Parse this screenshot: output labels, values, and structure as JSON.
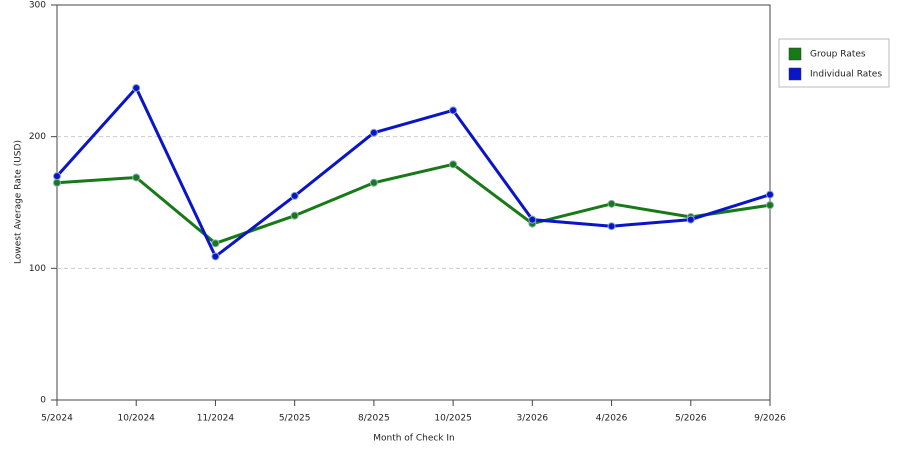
{
  "chart_data": {
    "type": "line",
    "x_label": "Month of Check In",
    "y_label": "Lowest Average Rate (USD)",
    "categories": [
      "5/2024",
      "10/2024",
      "11/2024",
      "5/2025",
      "8/2025",
      "10/2025",
      "3/2026",
      "4/2026",
      "5/2026",
      "9/2026"
    ],
    "series": [
      {
        "name": "Group Rates",
        "color": "#177a17",
        "values": [
          165,
          169,
          119,
          140,
          165,
          179,
          134,
          149,
          139,
          148
        ]
      },
      {
        "name": "Individual Rates",
        "color": "#0a14c8",
        "values": [
          170,
          237,
          109,
          155,
          203,
          220,
          137,
          132,
          137,
          156
        ]
      }
    ],
    "ylim": [
      0,
      300
    ],
    "yticks": [
      0,
      100,
      200,
      300
    ],
    "grid": true
  }
}
